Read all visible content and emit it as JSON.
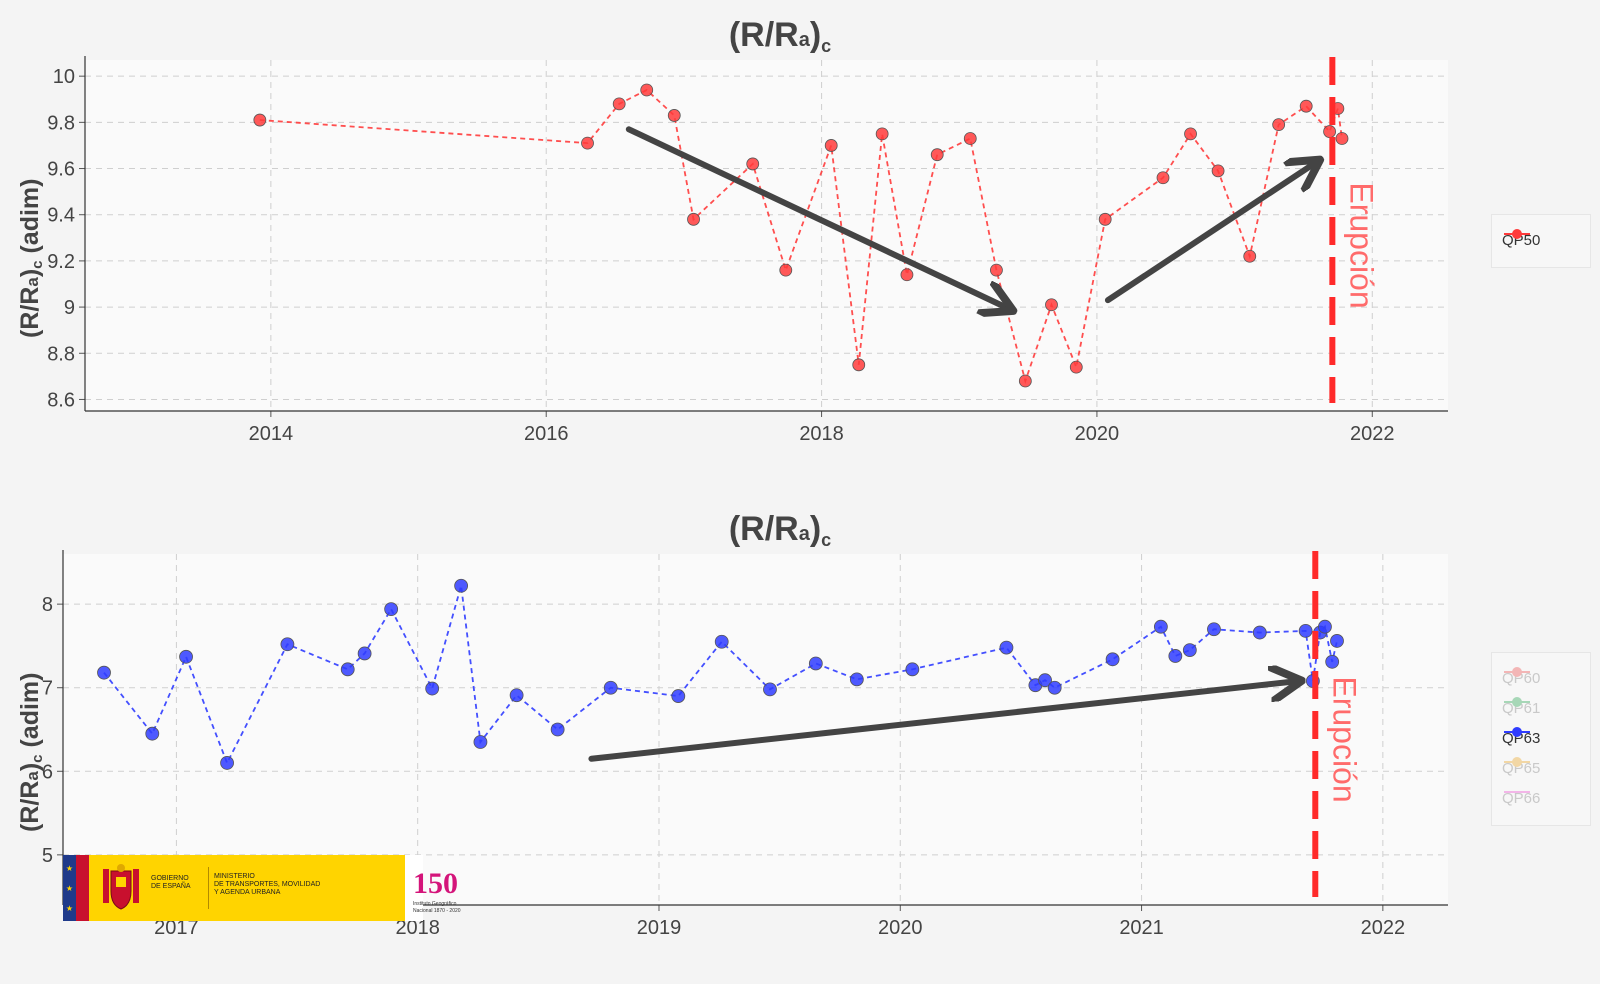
{
  "charts": [
    {
      "title": {
        "main": "(R/R",
        "sub": "a",
        "close": ")",
        "subc": "c"
      },
      "ylabel": {
        "main": "(R/R",
        "sub": "a",
        "close": ")",
        "subc": "c",
        "rest": " (adim)"
      },
      "event_label": "Erupción",
      "legend": [
        {
          "label": "QP50",
          "color": "#ff3b3b",
          "active": true
        }
      ]
    },
    {
      "title": {
        "main": "(R/R",
        "sub": "a",
        "close": ")",
        "subc": "c"
      },
      "ylabel": {
        "main": "(R/R",
        "sub": "a",
        "close": ")",
        "subc": "c",
        "rest": " (adim)"
      },
      "event_label": "Erupción",
      "legend": [
        {
          "label": "QP60",
          "color": "#f3b6b6",
          "active": false
        },
        {
          "label": "QP61",
          "color": "#a7d7b7",
          "active": false
        },
        {
          "label": "QP63",
          "color": "#2f3cff",
          "active": true
        },
        {
          "label": "QP65",
          "color": "#f2d7a5",
          "active": false
        },
        {
          "label": "QP66",
          "color": "#f3b6e8",
          "active": false
        }
      ]
    }
  ],
  "chart_data": [
    {
      "type": "line",
      "title": "(R/Ra)c",
      "xlabel": "",
      "ylabel": "(R/Ra)c (adim)",
      "xlim": [
        2012.65,
        2022.55
      ],
      "ylim": [
        8.55,
        10.07
      ],
      "xticks": [
        2014,
        2016,
        2018,
        2020,
        2022
      ],
      "yticks": [
        8.6,
        8.8,
        9,
        9.2,
        9.4,
        9.6,
        9.8,
        10
      ],
      "ytick_labels": [
        "8.6",
        "8.8",
        "9",
        "9.2",
        "9.4",
        "9.6",
        "9.8",
        "10"
      ],
      "event": {
        "x": 2021.71,
        "label": "Erupción",
        "color": "#ff2a2a"
      },
      "series": [
        {
          "name": "QP50",
          "color": "#ff3b3b",
          "x": [
            2013.92,
            2016.3,
            2016.53,
            2016.73,
            2016.93,
            2017.07,
            2017.5,
            2017.74,
            2018.07,
            2018.27,
            2018.44,
            2018.62,
            2018.84,
            2019.08,
            2019.27,
            2019.48,
            2019.67,
            2019.85,
            2020.06,
            2020.48,
            2020.68,
            2020.88,
            2021.11,
            2021.32,
            2021.52,
            2021.69,
            2021.75,
            2021.78
          ],
          "y": [
            9.81,
            9.71,
            9.88,
            9.94,
            9.83,
            9.38,
            9.62,
            9.16,
            9.7,
            8.75,
            9.75,
            9.14,
            9.66,
            9.73,
            9.16,
            8.68,
            9.01,
            8.74,
            9.38,
            9.56,
            9.75,
            9.59,
            9.22,
            9.79,
            9.87,
            9.76,
            9.86,
            9.73
          ]
        }
      ],
      "annotations": [
        {
          "type": "arrow",
          "from": [
            2016.6,
            9.77
          ],
          "to": [
            2019.37,
            8.99
          ]
        },
        {
          "type": "arrow",
          "from": [
            2020.08,
            9.03
          ],
          "to": [
            2021.6,
            9.63
          ]
        }
      ]
    },
    {
      "type": "line",
      "title": "(R/Ra)c",
      "xlabel": "",
      "ylabel": "(R/Ra)c (adim)",
      "xlim": [
        2016.53,
        2022.27
      ],
      "ylim": [
        4.4,
        8.6
      ],
      "xticks": [
        2017,
        2018,
        2019,
        2020,
        2021,
        2022
      ],
      "yticks": [
        5,
        6,
        7,
        8
      ],
      "ytick_labels": [
        "5",
        "6",
        "7",
        "8"
      ],
      "event": {
        "x": 2021.72,
        "label": "Erupción",
        "color": "#ff2a2a"
      },
      "series": [
        {
          "name": "QP63",
          "color": "#2f3cff",
          "x": [
            2016.7,
            2016.9,
            2017.04,
            2017.21,
            2017.46,
            2017.71,
            2017.78,
            2017.89,
            2018.06,
            2018.18,
            2018.26,
            2018.41,
            2018.58,
            2018.8,
            2019.08,
            2019.26,
            2019.46,
            2019.65,
            2019.82,
            2020.05,
            2020.44,
            2020.56,
            2020.6,
            2020.64,
            2020.88,
            2021.08,
            2021.14,
            2021.2,
            2021.3,
            2021.49,
            2021.68,
            2021.71,
            2021.74,
            2021.76,
            2021.79,
            2021.81
          ],
          "y": [
            7.18,
            6.45,
            7.37,
            6.1,
            7.52,
            7.22,
            7.41,
            7.94,
            6.99,
            8.22,
            6.35,
            6.91,
            6.5,
            7.0,
            6.9,
            7.55,
            6.98,
            7.29,
            7.1,
            7.22,
            7.48,
            7.03,
            7.09,
            7.0,
            7.34,
            7.73,
            7.38,
            7.45,
            7.7,
            7.66,
            7.68,
            7.08,
            7.66,
            7.73,
            7.31,
            7.56
          ]
        }
      ],
      "annotations": [
        {
          "type": "arrow",
          "from": [
            2018.72,
            6.15
          ],
          "to": [
            2021.65,
            7.08
          ]
        }
      ]
    }
  ],
  "logos": {
    "gov_line1": "GOBIERNO",
    "gov_line2": "DE ESPAÑA",
    "ministry_line1": "MINISTERIO",
    "ministry_line2": "DE TRANSPORTES, MOVILIDAD",
    "ministry_line3": "Y AGENDA URBANA",
    "ign_number": "150",
    "ign_line1": "Instituto Geográfico",
    "ign_line2": "Nacional 1870 - 2020"
  }
}
